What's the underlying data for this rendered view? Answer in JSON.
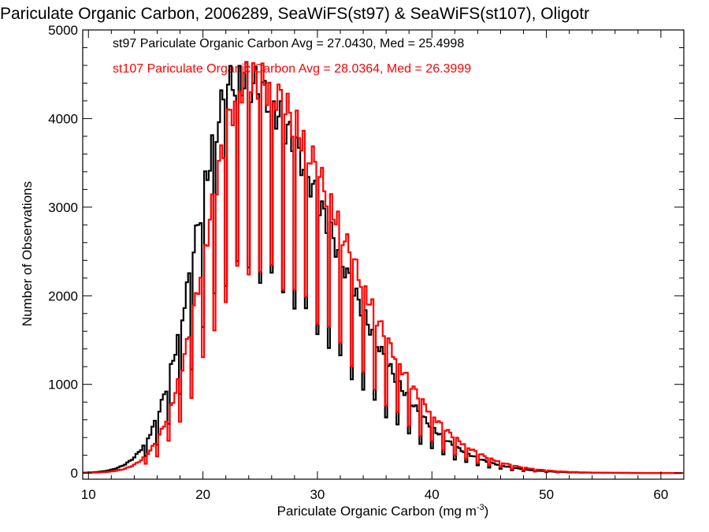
{
  "chart_data": {
    "type": "histogram-step",
    "title": "Pariculate Organic Carbon, 2006289, SeaWiFS(st97) & SeaWiFS(st107), Oligotr",
    "xlabel": "Pariculate Organic Carbon (mg m",
    "xlabel_sup": "-3",
    "xlabel_close": ")",
    "ylabel": "Number of Observations",
    "xlim": [
      9.5,
      62
    ],
    "ylim": [
      -70,
      5000
    ],
    "x_ticks": [
      10,
      20,
      30,
      40,
      50,
      60
    ],
    "y_ticks": [
      0,
      1000,
      2000,
      3000,
      4000,
      5000
    ],
    "grid": false,
    "legend_position": "top-left",
    "series": [
      {
        "name": "st97",
        "label": "st97 Pariculate Organic Carbon Avg = 27.0430, Med = 25.4998",
        "color": "#000000",
        "avg": 27.043,
        "median": 25.4998,
        "mode": 23.0,
        "sigma_left": 3.55,
        "sigma_right": 8.2,
        "peak": 4450
      },
      {
        "name": "st107",
        "label": "st107 Pariculate Organic Carbon Avg = 28.0364, Med = 26.3999",
        "color": "#ff0000",
        "avg": 28.0364,
        "median": 26.3999,
        "mode": 24.0,
        "sigma_left": 3.6,
        "sigma_right": 8.2,
        "peak": 4450
      }
    ]
  }
}
